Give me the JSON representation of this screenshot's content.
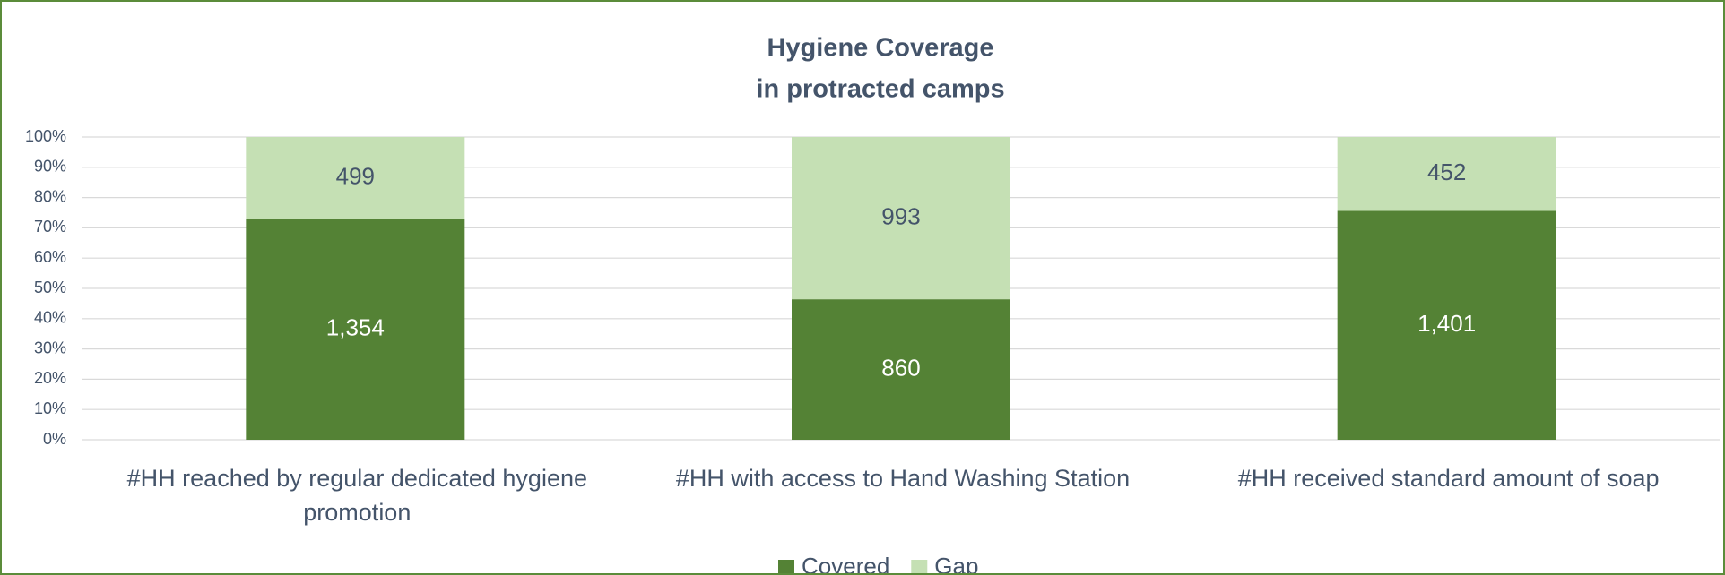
{
  "chart_data": {
    "type": "bar",
    "stacking": "percent",
    "title": [
      "Hygiene Coverage",
      "in protracted camps"
    ],
    "categories": [
      "#HH reached by regular dedicated hygiene promotion",
      "#HH with access to Hand Washing Station",
      "#HH received standard amount of soap"
    ],
    "series": [
      {
        "name": "Covered",
        "color": "#548235",
        "values": [
          1354,
          860,
          1401
        ],
        "value_labels": [
          "1,354",
          "860",
          "1,401"
        ],
        "label_color": "#ffffff"
      },
      {
        "name": "Gap",
        "color": "#c5e0b4",
        "values": [
          499,
          993,
          452
        ],
        "value_labels": [
          "499",
          "993",
          "452"
        ],
        "label_color": "#44546a"
      }
    ],
    "ylim": [
      0,
      100
    ],
    "yticks": [
      {
        "value": 0,
        "label": "0%"
      },
      {
        "value": 10,
        "label": "10%"
      },
      {
        "value": 20,
        "label": "20%"
      },
      {
        "value": 30,
        "label": "30%"
      },
      {
        "value": 40,
        "label": "40%"
      },
      {
        "value": 50,
        "label": "50%"
      },
      {
        "value": 60,
        "label": "60%"
      },
      {
        "value": 70,
        "label": "70%"
      },
      {
        "value": 80,
        "label": "80%"
      },
      {
        "value": 90,
        "label": "90%"
      },
      {
        "value": 100,
        "label": "100%"
      }
    ],
    "grid": true,
    "legend": "bottom"
  }
}
